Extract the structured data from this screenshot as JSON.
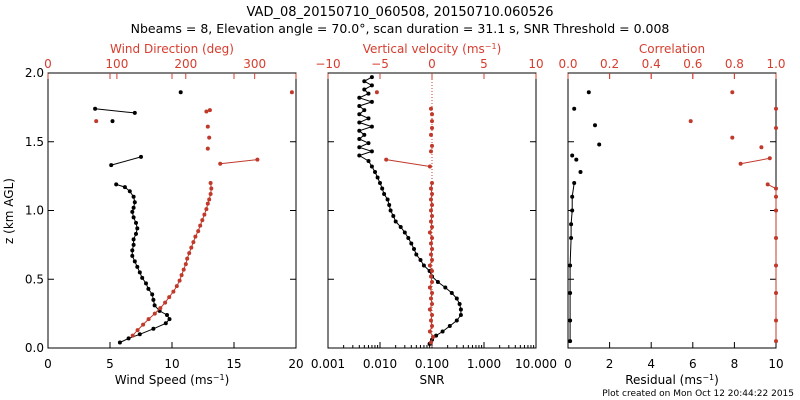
{
  "title": "VAD_08_20150710_060508, 20150710.060526",
  "subtitle": "Nbeams = 8, Elevation angle = 70.0°, scan duration = 31.1 s, SNR Threshold = 0.008",
  "footer": "Plot created on Mon Oct 12 20:44:22 2015",
  "colors": {
    "black": "#000000",
    "red": "#c0392b",
    "axis_red": "#d63d2e"
  },
  "chart_data": [
    {
      "type": "scatter",
      "panel": "wind",
      "ylabel": "z (km AGL)",
      "ylim": [
        0,
        2.0
      ],
      "yticks": [
        "0.0",
        "0.5",
        "1.0",
        "1.5",
        "2.0"
      ],
      "bottom_axis": {
        "label": "Wind Speed (ms⁻¹)",
        "range": [
          0,
          20
        ],
        "ticks": [
          "0",
          "5",
          "10",
          "15",
          "20"
        ]
      },
      "top_axis": {
        "label": "Wind Direction (deg)",
        "range": [
          0,
          360
        ],
        "ticks": [
          "0",
          "100",
          "200",
          "300"
        ]
      },
      "series": [
        {
          "axis": "bottom",
          "color": "black",
          "segments": [
            [
              [
                5.8,
                0.04
              ],
              [
                6.5,
                0.07
              ],
              [
                7.4,
                0.1
              ],
              [
                8.5,
                0.14
              ],
              [
                9.5,
                0.18
              ],
              [
                9.8,
                0.21
              ],
              [
                9.6,
                0.24
              ],
              [
                9.0,
                0.27
              ],
              [
                8.6,
                0.31
              ],
              [
                8.5,
                0.35
              ],
              [
                8.4,
                0.39
              ],
              [
                8.1,
                0.43
              ],
              [
                7.9,
                0.47
              ],
              [
                7.6,
                0.51
              ],
              [
                7.4,
                0.55
              ],
              [
                7.2,
                0.59
              ],
              [
                7.0,
                0.63
              ],
              [
                6.8,
                0.67
              ],
              [
                6.8,
                0.71
              ],
              [
                6.9,
                0.75
              ],
              [
                6.9,
                0.79
              ],
              [
                7.1,
                0.83
              ],
              [
                7.2,
                0.87
              ],
              [
                7.1,
                0.91
              ],
              [
                6.9,
                0.95
              ],
              [
                6.8,
                0.99
              ],
              [
                6.9,
                1.02
              ],
              [
                7.0,
                1.06
              ],
              [
                6.9,
                1.1
              ],
              [
                6.6,
                1.14
              ],
              [
                6.2,
                1.17
              ],
              [
                5.5,
                1.19
              ]
            ],
            [
              [
                5.1,
                1.33
              ],
              [
                7.5,
                1.39
              ]
            ],
            [
              [
                3.8,
                1.74
              ],
              [
                7.0,
                1.71
              ]
            ]
          ],
          "points": [
            [
              10.7,
              1.86
            ],
            [
              5.2,
              1.65
            ]
          ]
        },
        {
          "axis": "top",
          "color": "red",
          "segments": [
            [
              [
                123,
                0.09
              ],
              [
                130,
                0.13
              ],
              [
                138,
                0.17
              ],
              [
                146,
                0.21
              ],
              [
                155,
                0.25
              ],
              [
                163,
                0.29
              ],
              [
                170,
                0.33
              ],
              [
                176,
                0.37
              ],
              [
                182,
                0.41
              ],
              [
                187,
                0.45
              ],
              [
                191,
                0.49
              ],
              [
                194,
                0.53
              ],
              [
                197,
                0.57
              ],
              [
                200,
                0.61
              ],
              [
                202,
                0.65
              ],
              [
                205,
                0.69
              ],
              [
                208,
                0.73
              ],
              [
                211,
                0.77
              ],
              [
                214,
                0.81
              ],
              [
                218,
                0.85
              ],
              [
                221,
                0.89
              ],
              [
                224,
                0.93
              ],
              [
                227,
                0.97
              ],
              [
                230,
                1.01
              ],
              [
                232,
                1.05
              ],
              [
                234,
                1.08
              ],
              [
                236,
                1.12
              ],
              [
                237,
                1.16
              ],
              [
                236,
                1.2
              ]
            ],
            [
              [
                250,
                1.34
              ],
              [
                304,
                1.37
              ]
            ],
            [
              [
                230,
                1.72
              ],
              [
                235,
                1.73
              ]
            ]
          ],
          "points": [
            [
              70,
              1.65
            ],
            [
              234,
              1.53
            ],
            [
              232,
              1.61
            ],
            [
              232,
              1.45
            ],
            [
              354,
              1.86
            ]
          ]
        }
      ]
    },
    {
      "type": "scatter",
      "panel": "snr",
      "ylim": [
        0,
        2.0
      ],
      "bottom_axis": {
        "label": "SNR",
        "range": [
          0.001,
          10
        ],
        "scale": "log",
        "ticks": [
          "0.001",
          "0.010",
          "0.100",
          "1.000",
          "10.000"
        ]
      },
      "top_axis": {
        "label": "Vertical velocity (ms⁻¹)",
        "range": [
          -10,
          10
        ],
        "ticks": [
          "−10",
          "−5",
          "0",
          "5",
          "10"
        ]
      },
      "reference_line": {
        "axis": "top",
        "value": 0
      },
      "series": [
        {
          "axis": "bottom",
          "color": "black",
          "segments": [
            [
              [
                0.09,
                0.03
              ],
              [
                0.1,
                0.06
              ],
              [
                0.12,
                0.09
              ],
              [
                0.16,
                0.12
              ],
              [
                0.22,
                0.16
              ],
              [
                0.3,
                0.2
              ],
              [
                0.36,
                0.24
              ],
              [
                0.36,
                0.28
              ],
              [
                0.34,
                0.32
              ],
              [
                0.3,
                0.36
              ],
              [
                0.24,
                0.4
              ],
              [
                0.18,
                0.44
              ],
              [
                0.13,
                0.48
              ],
              [
                0.1,
                0.52
              ],
              [
                0.09,
                0.56
              ],
              [
                0.07,
                0.6
              ],
              [
                0.06,
                0.64
              ],
              [
                0.05,
                0.68
              ],
              [
                0.045,
                0.72
              ],
              [
                0.04,
                0.76
              ],
              [
                0.035,
                0.8
              ],
              [
                0.03,
                0.84
              ],
              [
                0.025,
                0.88
              ],
              [
                0.02,
                0.92
              ],
              [
                0.018,
                0.96
              ],
              [
                0.016,
                1.0
              ],
              [
                0.015,
                1.04
              ],
              [
                0.014,
                1.08
              ],
              [
                0.012,
                1.12
              ],
              [
                0.011,
                1.16
              ],
              [
                0.01,
                1.2
              ],
              [
                0.009,
                1.24
              ],
              [
                0.008,
                1.28
              ],
              [
                0.007,
                1.32
              ],
              [
                0.006,
                1.36
              ],
              [
                0.004,
                1.4
              ],
              [
                0.007,
                1.43
              ],
              [
                0.004,
                1.46
              ],
              [
                0.006,
                1.49
              ],
              [
                0.004,
                1.52
              ],
              [
                0.005,
                1.55
              ],
              [
                0.004,
                1.58
              ],
              [
                0.007,
                1.61
              ],
              [
                0.004,
                1.64
              ],
              [
                0.006,
                1.67
              ],
              [
                0.004,
                1.7
              ],
              [
                0.005,
                1.73
              ],
              [
                0.004,
                1.76
              ],
              [
                0.007,
                1.79
              ],
              [
                0.004,
                1.82
              ],
              [
                0.006,
                1.85
              ],
              [
                0.005,
                1.88
              ],
              [
                0.007,
                1.91
              ],
              [
                0.005,
                1.94
              ],
              [
                0.007,
                1.97
              ]
            ]
          ],
          "points": []
        },
        {
          "axis": "top",
          "color": "red",
          "segments": [
            [
              [
                -0.1,
                0.04
              ],
              [
                0.1,
                0.08
              ],
              [
                -0.2,
                0.12
              ],
              [
                0.0,
                0.16
              ],
              [
                -0.1,
                0.2
              ],
              [
                0.0,
                0.24
              ],
              [
                -0.2,
                0.28
              ],
              [
                0.0,
                0.32
              ],
              [
                -0.1,
                0.36
              ],
              [
                0.0,
                0.4
              ],
              [
                -0.2,
                0.44
              ],
              [
                0.0,
                0.48
              ],
              [
                -0.1,
                0.52
              ],
              [
                0.0,
                0.56
              ],
              [
                -0.2,
                0.6
              ],
              [
                0.0,
                0.64
              ],
              [
                -0.1,
                0.68
              ],
              [
                0.0,
                0.72
              ],
              [
                -0.1,
                0.76
              ],
              [
                0.0,
                0.8
              ],
              [
                -0.2,
                0.84
              ],
              [
                0.0,
                0.88
              ],
              [
                -0.1,
                0.92
              ],
              [
                0.0,
                0.96
              ],
              [
                -0.1,
                1.0
              ],
              [
                0.0,
                1.04
              ],
              [
                -0.1,
                1.08
              ],
              [
                0.0,
                1.12
              ],
              [
                -0.1,
                1.16
              ],
              [
                0.0,
                1.2
              ]
            ],
            [
              [
                -4.4,
                1.37
              ],
              [
                -0.2,
                1.32
              ]
            ]
          ],
          "points": [
            [
              -5.3,
              1.86
            ],
            [
              -0.1,
              1.74
            ],
            [
              0.0,
              1.7
            ],
            [
              0.0,
              1.65
            ],
            [
              -0.1,
              1.55
            ],
            [
              0.0,
              1.47
            ],
            [
              -0.1,
              1.43
            ],
            [
              0.0,
              1.6
            ]
          ]
        }
      ]
    },
    {
      "type": "scatter",
      "panel": "residual",
      "ylim": [
        0,
        2.0
      ],
      "bottom_axis": {
        "label": "Residual (ms⁻¹)",
        "range": [
          0,
          10
        ],
        "ticks": [
          "0",
          "2",
          "4",
          "6",
          "8",
          "10"
        ]
      },
      "top_axis": {
        "label": "Correlation",
        "range": [
          0,
          1.0
        ],
        "ticks": [
          "0.0",
          "0.2",
          "0.4",
          "0.6",
          "0.8",
          "1.0"
        ]
      },
      "series": [
        {
          "axis": "bottom",
          "color": "black",
          "segments": [
            [
              [
                0.1,
                0.05
              ],
              [
                0.1,
                0.2
              ],
              [
                0.1,
                0.4
              ],
              [
                0.1,
                0.6
              ],
              [
                0.15,
                0.8
              ],
              [
                0.15,
                0.9
              ],
              [
                0.2,
                1.0
              ],
              [
                0.2,
                1.1
              ],
              [
                0.3,
                1.2
              ]
            ]
          ],
          "points": [
            [
              0.4,
              1.37
            ],
            [
              0.6,
              1.28
            ],
            [
              1.0,
              1.86
            ],
            [
              1.3,
              1.62
            ],
            [
              1.5,
              1.48
            ],
            [
              0.3,
              1.74
            ],
            [
              0.2,
              1.4
            ]
          ]
        },
        {
          "axis": "top",
          "color": "red",
          "segments": [
            [
              [
                1.0,
                0.05
              ],
              [
                1.0,
                0.2
              ],
              [
                1.0,
                0.4
              ],
              [
                1.0,
                0.6
              ],
              [
                1.0,
                0.8
              ],
              [
                1.0,
                1.0
              ],
              [
                1.0,
                1.1
              ],
              [
                1.0,
                1.16
              ],
              [
                0.96,
                1.19
              ]
            ],
            [
              [
                0.83,
                1.34
              ],
              [
                0.97,
                1.38
              ]
            ]
          ],
          "points": [
            [
              0.79,
              1.86
            ],
            [
              1.0,
              1.74
            ],
            [
              0.59,
              1.65
            ],
            [
              0.79,
              1.53
            ],
            [
              0.93,
              1.46
            ],
            [
              1.0,
              1.6
            ]
          ]
        }
      ]
    }
  ]
}
